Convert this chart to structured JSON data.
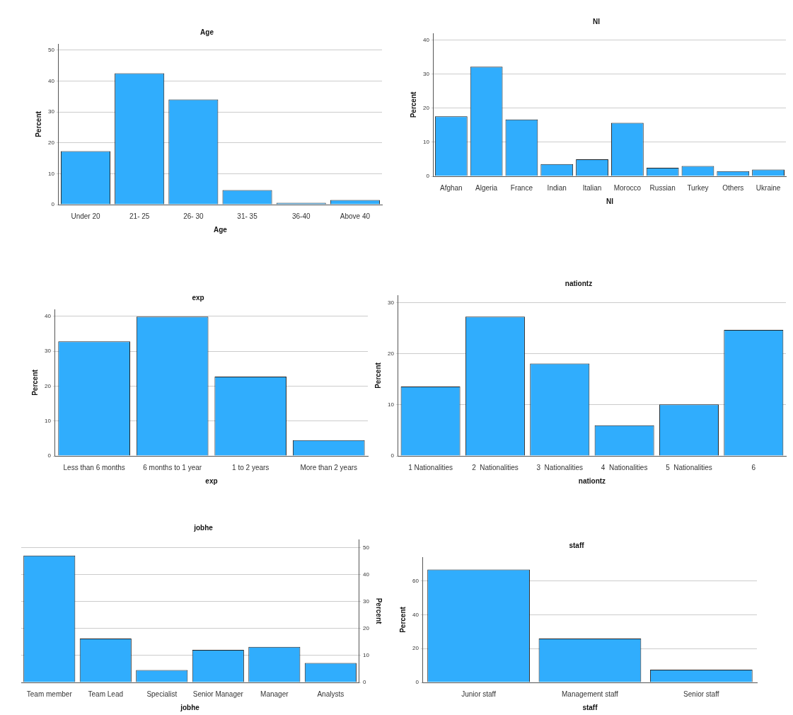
{
  "chart_data": [
    {
      "type": "bar",
      "title": "Age",
      "xlabel": "Age",
      "ylabel": "Percent",
      "categories": [
        "Under 20",
        "21- 25",
        "26- 30",
        "31- 35",
        "36-40",
        "Above 40"
      ],
      "values": [
        17.3,
        42.5,
        34.0,
        4.7,
        0.6,
        1.5
      ],
      "color": "#30adfd",
      "ylim": [
        0,
        52
      ],
      "yticks": [
        0,
        10,
        20,
        30,
        40,
        50
      ],
      "grid": "y"
    },
    {
      "type": "bar",
      "title": "Nl",
      "xlabel": "Nl",
      "ylabel": "Percent",
      "categories": [
        "Afghan",
        "Algeria",
        "France",
        "Indian",
        "Italian",
        "Morocco",
        "Russian",
        "Turkey",
        "Others",
        "Ukraine"
      ],
      "values": [
        17.6,
        32.2,
        16.7,
        3.6,
        5.0,
        15.7,
        2.5,
        3.0,
        1.5,
        2.0
      ],
      "color": "#30adfd",
      "ylim": [
        0,
        42
      ],
      "yticks": [
        0,
        10,
        20,
        30,
        40
      ],
      "grid": "y"
    },
    {
      "type": "bar",
      "title": "exp",
      "xlabel": "exp",
      "ylabel": "Percent",
      "categories": [
        "Less than 6 months",
        "6 months to 1 year",
        "1 to 2 years",
        "More than 2 years"
      ],
      "values": [
        32.8,
        39.9,
        22.7,
        4.5
      ],
      "color": "#30adfd",
      "ylim": [
        0,
        42
      ],
      "yticks": [
        0,
        10,
        20,
        30,
        40
      ],
      "grid": "y"
    },
    {
      "type": "bar",
      "title": "nationtz",
      "xlabel": "nationtz",
      "ylabel": "Percent",
      "categories": [
        "1 Nationalities",
        "2  Nationalities",
        "3  Nationalities",
        "4  Nationalities",
        "5  Nationalities",
        "6"
      ],
      "values": [
        13.6,
        27.3,
        18.1,
        6.0,
        10.1,
        24.7
      ],
      "color": "#30adfd",
      "ylim": [
        0,
        31.5
      ],
      "yticks": [
        0,
        10,
        20,
        30
      ],
      "grid": "y"
    },
    {
      "type": "bar",
      "title": "jobhe",
      "xlabel": "jobhe",
      "y2label": "Percent",
      "categories": [
        "Team member",
        "Team Lead",
        "Specialist",
        "Senior Manager",
        "Manager",
        "Analysts"
      ],
      "series": [
        {
          "values": [
            47.0,
            16.3,
            4.6,
            12.1,
            13.2,
            7.2
          ],
          "color": "#30adfd",
          "axis": "y2"
        }
      ],
      "y2lim": [
        0,
        53
      ],
      "y2ticks": [
        0,
        10,
        20,
        30,
        40,
        50
      ],
      "grid": "y"
    },
    {
      "type": "bar",
      "title": "staff",
      "xlabel": "staff",
      "ylabel": "Percent",
      "categories": [
        "Junior staff",
        "Management staff",
        "Senior staff"
      ],
      "values": [
        66.7,
        25.9,
        7.5
      ],
      "color": "#30adfd",
      "ylim": [
        0,
        74
      ],
      "yticks": [
        0,
        20,
        40,
        60
      ],
      "grid": "y"
    }
  ]
}
